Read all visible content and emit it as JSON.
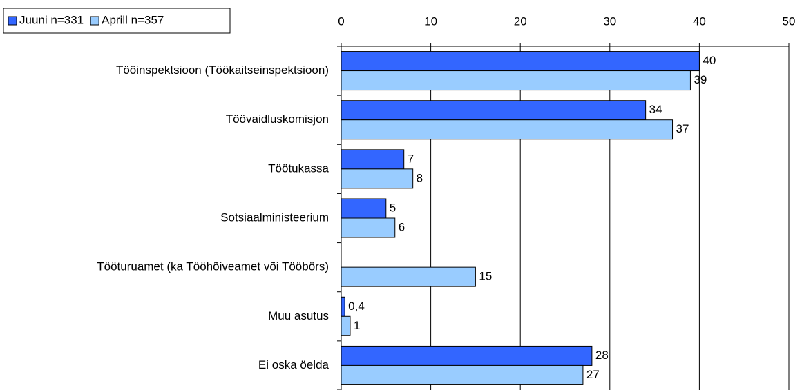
{
  "chart_data": {
    "type": "hbar",
    "categories": [
      "Tööinspektsioon (Töökaitseinspektsioon)",
      "Töövaidluskomisjon",
      "Töötukassa",
      "Sotsiaalministeerium",
      "Tööturuamet (ka Tööhõiveamet või Tööbörs)",
      "Muu asutus",
      "Ei oska öelda"
    ],
    "series": [
      {
        "name": "Juuni n=331",
        "color": "#3366ff",
        "values": [
          40,
          34,
          7,
          5,
          null,
          0.4,
          28
        ],
        "value_labels": [
          "40",
          "34",
          "7",
          "5",
          null,
          "0,4",
          "28"
        ]
      },
      {
        "name": "Aprill n=357",
        "color": "#99ccff",
        "values": [
          39,
          37,
          8,
          6,
          15,
          1,
          27
        ]
      }
    ],
    "xlim": [
      0,
      50
    ],
    "xticks": [
      0,
      10,
      20,
      30,
      40,
      50
    ],
    "grid": true,
    "legend": "top-left"
  }
}
